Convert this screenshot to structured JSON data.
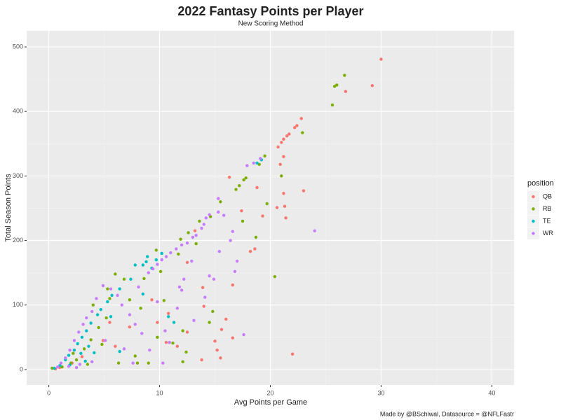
{
  "chart_data": {
    "type": "scatter",
    "title": "2022 Fantasy Points per Player",
    "subtitle": "New Scoring Method",
    "x_label": "Avg Points per Game",
    "y_label": "Total Season Points",
    "caption": "Made by @BSchiwal, Datasource = @NFLFastr",
    "legend_title": "position",
    "legend_position": "right",
    "grid": true,
    "xlim": [
      -2,
      42
    ],
    "ylim": [
      -24,
      525
    ],
    "xticks": [
      0,
      10,
      20,
      30,
      40
    ],
    "yticks": [
      0,
      100,
      200,
      300,
      400,
      500
    ],
    "series": [
      {
        "name": "QB",
        "color": "#F8766D",
        "x": [
          30,
          29.2,
          26.8,
          22.8,
          22.4,
          22.2,
          21.7,
          21.5,
          21.2,
          21,
          20.7,
          21.2,
          20.9,
          23,
          21.2,
          21.3,
          20.6,
          21.4,
          19.3,
          18.8,
          18.2,
          18.6,
          16.6,
          16,
          15.6,
          15.5,
          15,
          13.8,
          16.6,
          22,
          13.9,
          14,
          12.5,
          11.6,
          10.6,
          10.8,
          9.8,
          9.3,
          8.5,
          7.3,
          5.5,
          4.9,
          6,
          3,
          2.1,
          1,
          0.6,
          15.2,
          16.3,
          17.4,
          13.2,
          12.5
        ],
        "y": [
          481,
          440,
          431,
          389,
          378,
          375,
          365,
          362,
          357,
          352,
          345,
          330,
          318,
          277,
          273,
          253,
          251,
          235,
          238,
          282,
          183,
          187,
          131,
          78,
          62,
          18,
          44,
          15,
          49,
          24,
          127,
          98,
          58,
          36,
          42,
          87,
          73,
          108,
          117,
          66,
          73,
          45,
          36,
          20,
          10,
          3,
          1,
          30,
          298,
          246,
          215,
          166
        ]
      },
      {
        "name": "RB",
        "color": "#7CAE00",
        "x": [
          26.7,
          26,
          25.8,
          25.6,
          22.9,
          19.5,
          19,
          17.8,
          17.6,
          17.2,
          16.9,
          21,
          19.7,
          20.4,
          18.7,
          17.5,
          15.5,
          14.6,
          13.6,
          12.6,
          11.9,
          11.7,
          13.3,
          9.7,
          10.1,
          8.6,
          8.3,
          9.8,
          11.2,
          12.1,
          12.1,
          14.5,
          14.8,
          10.4,
          7.3,
          6.8,
          5.5,
          5.2,
          4.5,
          4.8,
          3.8,
          3.2,
          2.5,
          2,
          1.2,
          0.3,
          6.3,
          8,
          9,
          7.8,
          3.5,
          2.2,
          4,
          5.3,
          6,
          12.4
        ],
        "y": [
          456,
          441,
          439,
          410,
          367,
          331,
          318,
          297,
          294,
          285,
          279,
          300,
          257,
          144,
          205,
          230,
          260,
          237,
          230,
          212,
          202,
          179,
          195,
          185,
          152,
          141,
          95,
          50,
          41,
          12,
          60,
          73,
          90,
          107,
          108,
          140,
          110,
          80,
          65,
          39,
          46,
          32,
          15,
          10,
          4,
          2,
          10,
          10,
          10,
          21,
          8,
          25,
          100,
          125,
          148,
          27
        ]
      },
      {
        "name": "TE",
        "color": "#00BFC4",
        "x": [
          19.2,
          18.8,
          10.2,
          9.7,
          9.3,
          8.5,
          8.8,
          8.9,
          7.8,
          7.4,
          6.4,
          5.7,
          5.3,
          4.7,
          4.4,
          3.8,
          3.4,
          3,
          2.6,
          2.3,
          1.8,
          1.5,
          1,
          0.5,
          3.6,
          4.1,
          5.6,
          2.9,
          10.8,
          11.3,
          8.5,
          6.4,
          3.3,
          1.9
        ],
        "y": [
          325,
          320,
          180,
          170,
          157,
          162,
          167,
          175,
          162,
          140,
          125,
          115,
          105,
          93,
          85,
          72,
          60,
          50,
          40,
          30,
          22,
          15,
          6,
          2,
          36,
          26,
          82,
          25,
          82,
          73,
          117,
          28,
          13,
          7
        ]
      },
      {
        "name": "WR",
        "color": "#C77CFF",
        "x": [
          24,
          17.6,
          16.8,
          17,
          16.4,
          15.8,
          15.3,
          14.5,
          14.2,
          14,
          13.8,
          13.3,
          13,
          12.5,
          12,
          11.5,
          11,
          10.6,
          10.2,
          9.8,
          9.4,
          9,
          15.4,
          14.9,
          14.1,
          13.1,
          12.2,
          12,
          11.8,
          11.6,
          10.5,
          10.9,
          10.3,
          9.1,
          8.4,
          7.8,
          7.3,
          6.6,
          6.2,
          5.6,
          4.9,
          4.3,
          3.9,
          3.4,
          3.1,
          2.7,
          2.3,
          1.9,
          1.5,
          1.1,
          0.8,
          2.8,
          3.9,
          5.1,
          6.8,
          7.6,
          14.5,
          16.6,
          17.9,
          18.5,
          19.1,
          15.3,
          8.1,
          9.8,
          12.9,
          1.8,
          2.5
        ],
        "y": [
          215,
          54,
          152,
          168,
          200,
          239,
          244,
          240,
          235,
          225,
          219,
          208,
          205,
          196,
          193,
          187,
          181,
          175,
          170,
          163,
          156,
          150,
          183,
          140,
          112,
          76,
          140,
          123,
          128,
          95,
          60,
          42,
          10,
          30,
          56,
          70,
          85,
          100,
          115,
          125,
          130,
          110,
          90,
          80,
          70,
          58,
          45,
          30,
          18,
          10,
          4,
          8,
          12,
          45,
          32,
          10,
          145,
          214,
          316,
          320,
          327,
          265,
          128,
          105,
          168,
          5,
          3
        ]
      }
    ]
  }
}
